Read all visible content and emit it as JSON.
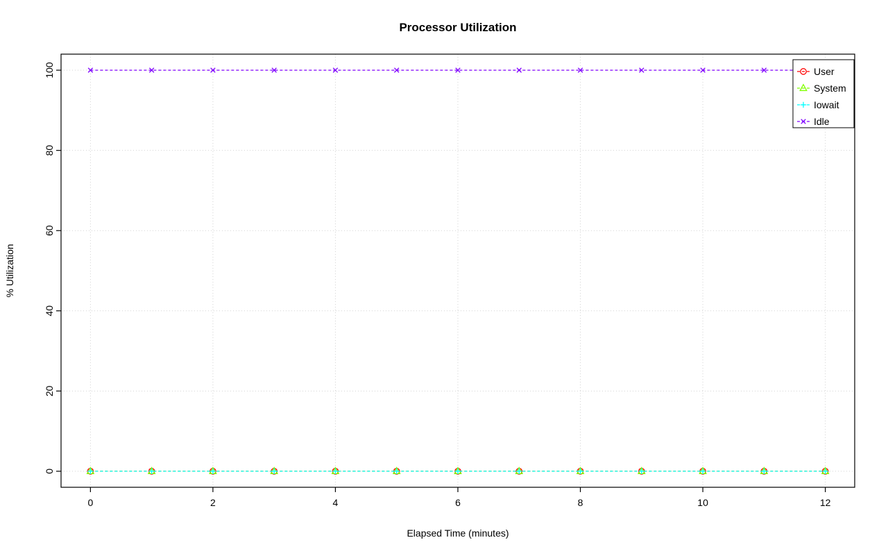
{
  "chart_data": {
    "type": "line",
    "title": "Processor Utilization",
    "xlabel": "Elapsed Time (minutes)",
    "ylabel": "% Utilization",
    "x": [
      0,
      1,
      2,
      3,
      4,
      5,
      6,
      7,
      8,
      9,
      10,
      11,
      12
    ],
    "series": [
      {
        "name": "User",
        "color": "#FF0000",
        "marker": "circle",
        "values": [
          0,
          0,
          0,
          0,
          0,
          0,
          0,
          0,
          0,
          0,
          0,
          0,
          0
        ]
      },
      {
        "name": "System",
        "color": "#80FF00",
        "marker": "triangle",
        "values": [
          0,
          0,
          0,
          0,
          0,
          0,
          0,
          0,
          0,
          0,
          0,
          0,
          0
        ]
      },
      {
        "name": "Iowait",
        "color": "#00FFFF",
        "marker": "plus",
        "values": [
          0,
          0,
          0,
          0,
          0,
          0,
          0,
          0,
          0,
          0,
          0,
          0,
          0
        ]
      },
      {
        "name": "Idle",
        "color": "#8000FF",
        "marker": "x",
        "values": [
          100,
          100,
          100,
          100,
          100,
          100,
          100,
          100,
          100,
          100,
          100,
          100,
          100
        ]
      }
    ],
    "xlim": [
      0,
      12
    ],
    "ylim": [
      0,
      100
    ],
    "xticks": [
      0,
      2,
      4,
      6,
      8,
      10,
      12
    ],
    "yticks": [
      0,
      20,
      40,
      60,
      80,
      100
    ],
    "grid": true,
    "grid_color": "#D3D3D3",
    "line_style": "dashed",
    "axis_color": "#000000",
    "legend": {
      "position": "topright",
      "entries": [
        "User",
        "System",
        "Iowait",
        "Idle"
      ]
    }
  }
}
